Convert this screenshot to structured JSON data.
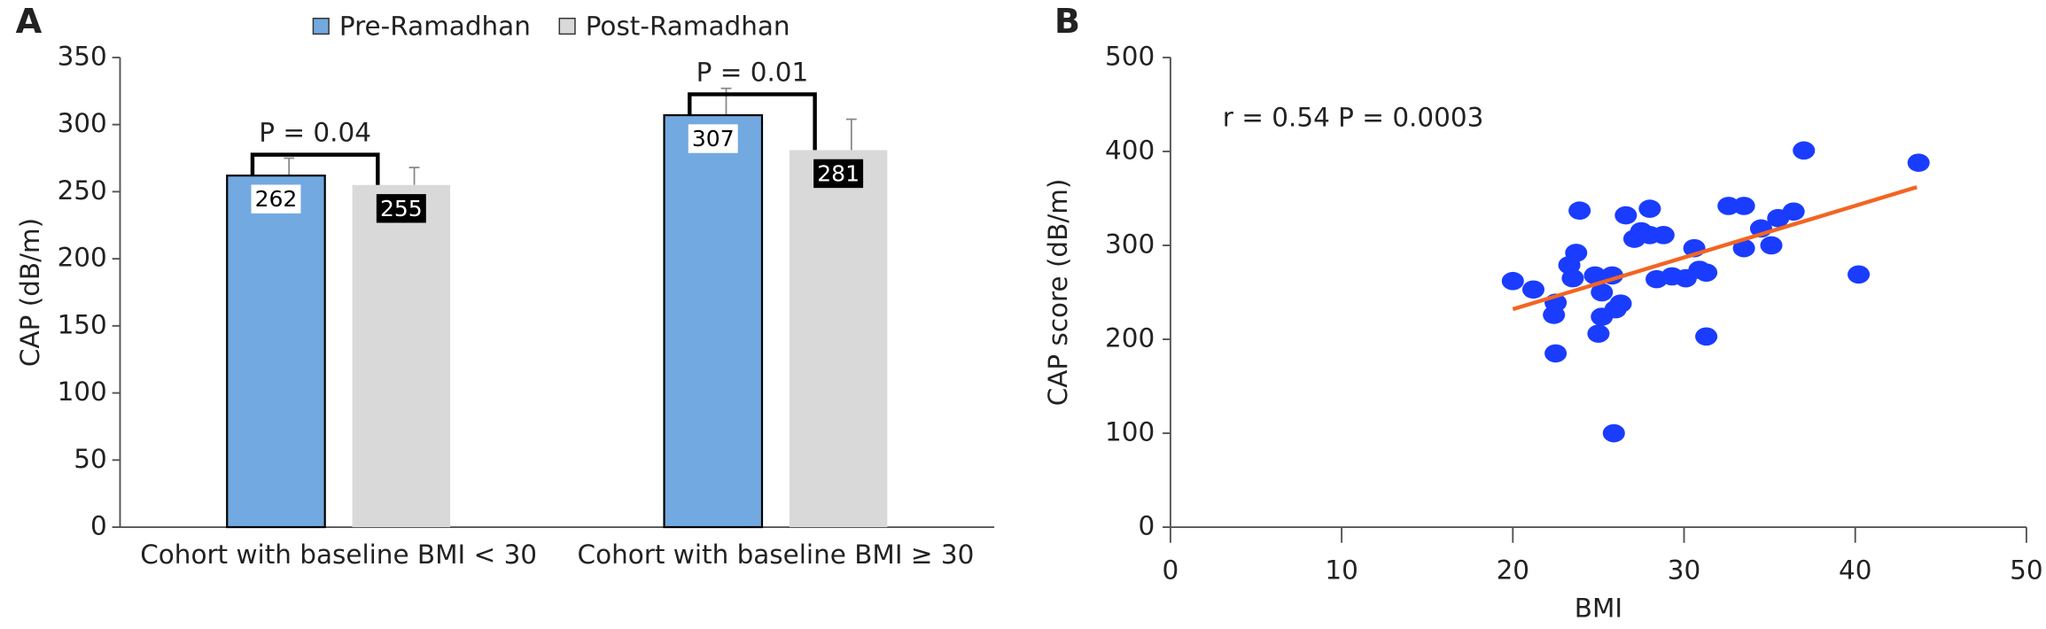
{
  "chart_data": [
    {
      "type": "bar",
      "panel_label": "A",
      "y_label": "CAP (dB/m)",
      "categories": [
        "Cohort with baseline BMI < 30",
        "Cohort with baseline BMI ≥ 30"
      ],
      "series": [
        {
          "name": "Pre-Ramadhan",
          "color": "#72a9e0",
          "values": [
            262,
            307
          ],
          "errors": [
            13,
            20
          ]
        },
        {
          "name": "Post-Ramadhan",
          "color": "#d9d9d9",
          "values": [
            255,
            281
          ],
          "errors": [
            13,
            23
          ]
        }
      ],
      "annotations": [
        "P = 0.04",
        "P = 0.01"
      ],
      "ylim": [
        0,
        350
      ],
      "yticks": [
        0,
        50,
        100,
        150,
        200,
        250,
        300,
        350
      ]
    },
    {
      "type": "scatter",
      "panel_label": "B",
      "x_label": "BMI",
      "y_label": "CAP score (dB/m)",
      "annotation": "r = 0.54 P = 0.0003",
      "points": {
        "color": "#1a3cff",
        "x": [
          20.0,
          21.2,
          22.5,
          22.4,
          22.5,
          23.3,
          23.7,
          23.9,
          23.5,
          24.8,
          25.2,
          25.0,
          25.2,
          25.8,
          26.0,
          26.3,
          25.9,
          26.6,
          27.1,
          27.5,
          28.0,
          28.0,
          28.4,
          28.8,
          29.3,
          30.1,
          30.6,
          30.9,
          31.3,
          31.3,
          32.6,
          33.5,
          33.5,
          34.5,
          35.1,
          35.5,
          36.4,
          37.0,
          40.2,
          43.7
        ],
        "values": [
          262,
          253,
          239,
          226,
          185,
          279,
          292,
          337,
          265,
          268,
          250,
          206,
          224,
          268,
          232,
          238,
          100,
          332,
          307,
          315,
          339,
          311,
          264,
          311,
          267,
          265,
          297,
          274,
          271,
          203,
          342,
          342,
          297,
          318,
          300,
          329,
          336,
          401,
          269,
          388
        ]
      },
      "trendline": {
        "color": "#f26522",
        "x": [
          20,
          43.6
        ],
        "values": [
          232,
          362
        ]
      },
      "xlim": [
        0,
        50
      ],
      "xticks": [
        0,
        10,
        20,
        30,
        40,
        50
      ],
      "ylim": [
        0,
        500
      ],
      "yticks": [
        0,
        100,
        200,
        300,
        400,
        500
      ]
    }
  ]
}
